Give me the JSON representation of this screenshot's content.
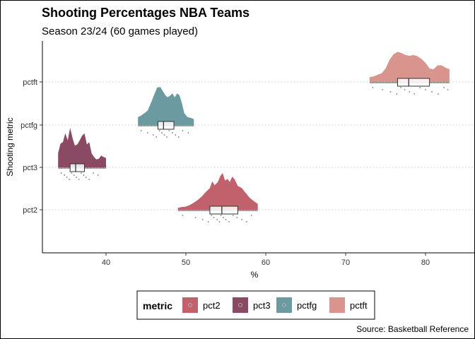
{
  "chart_data": {
    "type": "raincloud",
    "title": "Shooting Percentages NBA Teams",
    "subtitle": "Season 23/24 (60 games played)",
    "xlabel": "%",
    "ylabel": "Shooting metric",
    "caption": "Source: Basketball Reference",
    "xlim": [
      32.5,
      85.5
    ],
    "x_ticks": [
      40,
      50,
      60,
      70,
      80
    ],
    "grid": "horizontal dotted",
    "legend": {
      "title": "metric",
      "position": "bottom",
      "items": [
        "pct2",
        "pct3",
        "pctfg",
        "pctft"
      ]
    },
    "series": [
      {
        "name": "pct2",
        "color": "#c0616c",
        "range": [
          49.0,
          59.0
        ],
        "box": {
          "q1": 53.0,
          "median": 54.5,
          "q3": 56.5,
          "whisker_low": 49.0,
          "whisker_high": 59.0
        },
        "density": [
          [
            49.0,
            0.05
          ],
          [
            49.5,
            0.07
          ],
          [
            50.0,
            0.08
          ],
          [
            50.5,
            0.12
          ],
          [
            51.0,
            0.18
          ],
          [
            51.5,
            0.25
          ],
          [
            52.0,
            0.34
          ],
          [
            52.5,
            0.45
          ],
          [
            53.0,
            0.55
          ],
          [
            53.3,
            0.72
          ],
          [
            53.6,
            0.62
          ],
          [
            54.0,
            0.7
          ],
          [
            54.3,
            0.85
          ],
          [
            54.6,
            0.93
          ],
          [
            54.9,
            0.74
          ],
          [
            55.2,
            0.78
          ],
          [
            55.5,
            0.7
          ],
          [
            55.8,
            0.84
          ],
          [
            56.1,
            0.77
          ],
          [
            56.5,
            0.6
          ],
          [
            57.0,
            0.55
          ],
          [
            57.5,
            0.42
          ],
          [
            58.0,
            0.3
          ],
          [
            58.5,
            0.22
          ],
          [
            59.0,
            0.15
          ]
        ],
        "points": [
          49.6,
          51.2,
          52.1,
          52.8,
          53.2,
          53.5,
          53.9,
          54.2,
          54.4,
          54.7,
          55.0,
          55.4,
          55.9,
          56.4,
          57.0,
          57.6,
          58.2
        ]
      },
      {
        "name": "pct3",
        "color": "#8b4a63",
        "range": [
          34.0,
          40.0
        ],
        "box": {
          "q1": 35.5,
          "median": 36.2,
          "q3": 37.3,
          "whisker_low": 34.0,
          "whisker_high": 40.0
        },
        "density": [
          [
            34.0,
            0.36
          ],
          [
            34.3,
            0.6
          ],
          [
            34.6,
            0.64
          ],
          [
            34.9,
            0.86
          ],
          [
            35.2,
            0.68
          ],
          [
            35.5,
            1.0
          ],
          [
            35.8,
            0.75
          ],
          [
            36.1,
            0.55
          ],
          [
            36.4,
            0.58
          ],
          [
            36.7,
            0.68
          ],
          [
            37.0,
            0.8
          ],
          [
            37.3,
            0.86
          ],
          [
            37.6,
            0.58
          ],
          [
            37.9,
            0.64
          ],
          [
            38.2,
            0.35
          ],
          [
            38.5,
            0.26
          ],
          [
            38.8,
            0.2
          ],
          [
            39.1,
            0.22
          ],
          [
            39.4,
            0.3
          ],
          [
            39.7,
            0.26
          ],
          [
            40.0,
            0.24
          ]
        ],
        "points": [
          34.4,
          34.8,
          35.1,
          35.4,
          35.7,
          36.0,
          36.3,
          36.6,
          36.9,
          37.2,
          37.5,
          37.9,
          38.4,
          39.0
        ]
      },
      {
        "name": "pctfg",
        "color": "#6b9ba1",
        "range": [
          44.0,
          51.0
        ],
        "box": {
          "q1": 46.5,
          "median": 47.2,
          "q3": 48.5,
          "whisker_low": 44.0,
          "whisker_high": 51.0
        },
        "density": [
          [
            44.0,
            0.2
          ],
          [
            44.4,
            0.24
          ],
          [
            44.8,
            0.3
          ],
          [
            45.2,
            0.36
          ],
          [
            45.6,
            0.55
          ],
          [
            46.0,
            0.75
          ],
          [
            46.4,
            0.95
          ],
          [
            46.8,
            0.96
          ],
          [
            47.1,
            0.86
          ],
          [
            47.4,
            0.76
          ],
          [
            47.7,
            0.7
          ],
          [
            48.0,
            0.74
          ],
          [
            48.3,
            0.8
          ],
          [
            48.6,
            0.7
          ],
          [
            48.9,
            0.8
          ],
          [
            49.2,
            0.75
          ],
          [
            49.5,
            0.55
          ],
          [
            49.8,
            0.3
          ],
          [
            50.2,
            0.2
          ],
          [
            50.6,
            0.18
          ],
          [
            51.0,
            0.15
          ]
        ],
        "points": [
          44.4,
          45.2,
          45.9,
          46.3,
          46.7,
          47.0,
          47.3,
          47.6,
          47.9,
          48.3,
          48.7,
          49.1,
          49.6,
          50.3
        ]
      },
      {
        "name": "pctft",
        "color": "#d9948e",
        "range": [
          73.0,
          83.0
        ],
        "box": {
          "q1": 76.5,
          "median": 77.9,
          "q3": 80.5,
          "whisker_low": 73.0,
          "whisker_high": 83.0
        },
        "density": [
          [
            73.0,
            0.12
          ],
          [
            73.5,
            0.14
          ],
          [
            74.0,
            0.18
          ],
          [
            74.5,
            0.22
          ],
          [
            75.0,
            0.34
          ],
          [
            75.5,
            0.56
          ],
          [
            76.0,
            0.7
          ],
          [
            76.5,
            0.76
          ],
          [
            77.0,
            0.73
          ],
          [
            77.5,
            0.68
          ],
          [
            78.0,
            0.66
          ],
          [
            78.5,
            0.68
          ],
          [
            79.0,
            0.65
          ],
          [
            79.5,
            0.58
          ],
          [
            80.0,
            0.48
          ],
          [
            80.5,
            0.34
          ],
          [
            81.0,
            0.32
          ],
          [
            81.5,
            0.42
          ],
          [
            82.0,
            0.42
          ],
          [
            82.5,
            0.36
          ],
          [
            83.0,
            0.32
          ]
        ],
        "points": [
          73.4,
          74.6,
          75.6,
          76.4,
          76.9,
          77.4,
          78.0,
          78.6,
          79.3,
          80.0,
          80.8,
          81.6,
          82.3,
          82.8
        ]
      }
    ]
  }
}
